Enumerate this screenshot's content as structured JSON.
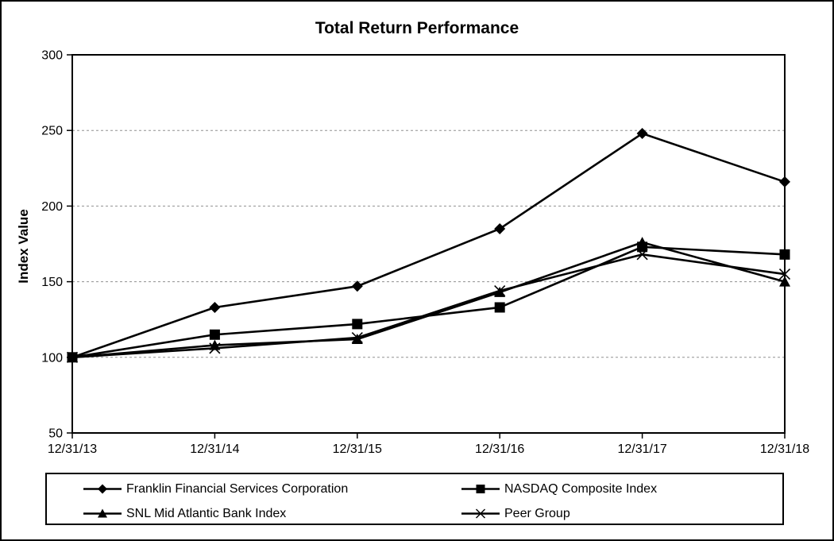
{
  "chart_data": {
    "type": "line",
    "title": "Total Return Performance",
    "xlabel": "",
    "ylabel": "Index Value",
    "categories": [
      "12/31/13",
      "12/31/14",
      "12/31/15",
      "12/31/16",
      "12/31/17",
      "12/31/18"
    ],
    "series": [
      {
        "name": "Franklin Financial Services Corporation",
        "marker": "diamond",
        "values": [
          100,
          133,
          147,
          185,
          248,
          216
        ]
      },
      {
        "name": "NASDAQ Composite Index",
        "marker": "square",
        "values": [
          100,
          115,
          122,
          133,
          173,
          168
        ]
      },
      {
        "name": "SNL Mid Atlantic Bank Index",
        "marker": "triangle",
        "values": [
          100,
          108,
          112,
          143,
          176,
          150
        ]
      },
      {
        "name": "Peer Group",
        "marker": "x",
        "values": [
          100,
          106,
          113,
          144,
          168,
          155
        ]
      }
    ],
    "ylim": [
      50,
      300
    ],
    "yticks": [
      50,
      100,
      150,
      200,
      250,
      300
    ],
    "grid": "horizontal-dashed",
    "legend_position": "bottom-box-two-columns",
    "colors": {
      "series": "#000000",
      "grid": "#909090",
      "axis": "#000000",
      "background": "#ffffff"
    }
  }
}
